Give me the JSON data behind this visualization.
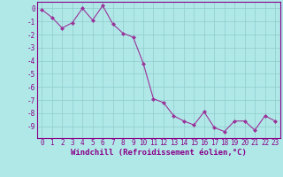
{
  "x": [
    0,
    1,
    2,
    3,
    4,
    5,
    6,
    7,
    8,
    9,
    10,
    11,
    12,
    13,
    14,
    15,
    16,
    17,
    18,
    19,
    20,
    21,
    22,
    23
  ],
  "y": [
    -0.1,
    -0.7,
    -1.5,
    -1.1,
    0.0,
    -0.9,
    0.2,
    -1.2,
    -1.9,
    -2.2,
    -4.2,
    -6.9,
    -7.2,
    -8.2,
    -8.6,
    -8.9,
    -7.9,
    -9.1,
    -9.4,
    -8.6,
    -8.6,
    -9.3,
    -8.2,
    -8.6
  ],
  "line_color": "#993399",
  "marker_color": "#993399",
  "bg_color": "#b0e8e8",
  "grid_color": "#90cccc",
  "xlabel": "Windchill (Refroidissement éolien,°C)",
  "xlim": [
    -0.5,
    23.5
  ],
  "ylim": [
    -9.9,
    0.5
  ],
  "yticks": [
    0,
    -1,
    -2,
    -3,
    -4,
    -5,
    -6,
    -7,
    -8,
    -9
  ],
  "xticks": [
    0,
    1,
    2,
    3,
    4,
    5,
    6,
    7,
    8,
    9,
    10,
    11,
    12,
    13,
    14,
    15,
    16,
    17,
    18,
    19,
    20,
    21,
    22,
    23
  ],
  "font_color": "#880088",
  "tick_fontsize": 5.5,
  "label_fontsize": 6.5
}
